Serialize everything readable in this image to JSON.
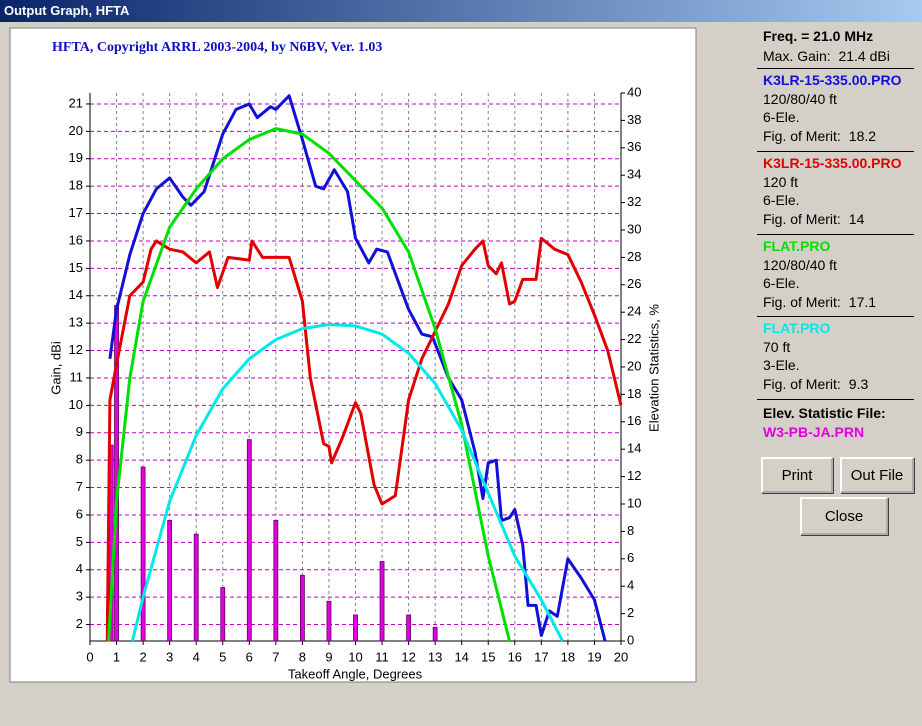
{
  "window": {
    "title": "Output Graph, HFTA"
  },
  "chart_data": {
    "type": "line",
    "title": "HFTA, Copyright ARRL 2003-2004, by N6BV, Ver. 1.03",
    "xlabel": "Takeoff Angle, Degrees",
    "ylabel": "Gain, dBi",
    "y2label": "Elevation Statistics, %",
    "xlim": [
      0,
      20
    ],
    "xticks": [
      0,
      1,
      2,
      3,
      4,
      5,
      6,
      7,
      8,
      9,
      10,
      11,
      12,
      13,
      14,
      15,
      16,
      17,
      18,
      19,
      20
    ],
    "ylim": [
      1.4,
      21.4
    ],
    "yticks": [
      2,
      3,
      4,
      5,
      6,
      7,
      8,
      9,
      10,
      11,
      12,
      13,
      14,
      15,
      16,
      17,
      18,
      19,
      20,
      21
    ],
    "y2lim": [
      0,
      40
    ],
    "y2ticks": [
      0,
      2,
      4,
      6,
      8,
      10,
      12,
      14,
      16,
      18,
      20,
      22,
      24,
      26,
      28,
      30,
      32,
      34,
      36,
      38,
      40
    ],
    "grid": true,
    "freq": "Freq. = 21.0 MHz",
    "max_gain": "Max. Gain:  21.4 dBi",
    "merit_label": "Fig. of Merit:",
    "series": [
      {
        "name": "K3LR-15-335.00.PRO",
        "color": "#1010d8",
        "height": "120/80/40 ft",
        "elements": "6-Ele.",
        "merit": 18.2,
        "x": [
          0.75,
          1,
          1.5,
          2,
          2.5,
          3,
          3.5,
          3.8,
          4.3,
          5,
          5.5,
          6,
          6.3,
          6.8,
          7,
          7.5,
          8,
          8.5,
          8.8,
          9.2,
          9.7,
          10,
          10.5,
          10.8,
          11.2,
          12,
          12.5,
          12.9,
          13.5,
          14,
          14.5,
          14.8,
          15,
          15.3,
          15.5,
          15.8,
          16,
          16.3,
          16.5,
          16.8,
          17,
          17.3,
          17.6,
          18,
          18.5,
          19,
          19.4
        ],
        "values": [
          11.7,
          13.5,
          15.5,
          17,
          17.9,
          18.3,
          17.6,
          17.3,
          17.8,
          19.9,
          20.8,
          21,
          20.5,
          20.9,
          20.8,
          21.3,
          19.7,
          18,
          17.9,
          18.6,
          17.8,
          16.1,
          15.2,
          15.7,
          15.6,
          13.5,
          12.6,
          12.5,
          11,
          10.2,
          8.3,
          6.6,
          7.9,
          8,
          5.8,
          5.9,
          6.2,
          4.9,
          2.7,
          2.7,
          1.6,
          2.5,
          2.3,
          4.4,
          3.7,
          2.9,
          1.4
        ]
      },
      {
        "name": "K3LR-15-335.00.PRO",
        "color": "#e00000",
        "height": "120 ft",
        "elements": "6-Ele.",
        "merit": 14,
        "x": [
          0.65,
          0.75,
          1,
          1.5,
          2,
          2.3,
          2.5,
          3,
          3.5,
          4,
          4.5,
          4.8,
          5.2,
          6,
          6.1,
          6.5,
          7,
          7.5,
          8,
          8.3,
          8.8,
          9,
          9.1,
          9.5,
          10,
          10.2,
          10.7,
          11,
          11.5,
          12,
          12.5,
          13,
          13.5,
          14,
          14.5,
          14.8,
          15,
          15.3,
          15.5,
          15.8,
          16,
          16.3,
          16.8,
          17,
          17.5,
          18,
          18.5,
          19,
          19.5,
          20
        ],
        "values": [
          1.4,
          10.2,
          11.5,
          14,
          14.5,
          15.7,
          16,
          15.7,
          15.6,
          15.2,
          15.6,
          14.3,
          15.4,
          15.3,
          16,
          15.4,
          15.4,
          15.4,
          13.8,
          11,
          8.6,
          8.5,
          7.9,
          8.8,
          10.1,
          9.7,
          7.1,
          6.4,
          6.7,
          10.2,
          11.7,
          12.7,
          13.7,
          15.1,
          15.7,
          16,
          15.1,
          14.8,
          15.2,
          13.7,
          13.8,
          14.6,
          14.6,
          16.1,
          15.7,
          15.5,
          14.5,
          13.3,
          12,
          10
        ]
      },
      {
        "name": "FLAT.PRO",
        "color": "#00e000",
        "height": "120/80/40 ft",
        "elements": "6-Ele.",
        "merit": 17.1,
        "x": [
          0.7,
          1,
          1.5,
          2,
          3,
          4,
          5,
          6,
          7,
          8,
          9,
          10,
          11,
          12,
          13,
          14,
          15,
          15.8
        ],
        "values": [
          1.4,
          6.5,
          11,
          13.8,
          16.5,
          17.9,
          19,
          19.7,
          20.1,
          19.9,
          19.2,
          18.2,
          17.2,
          15.6,
          12.8,
          9.3,
          4.5,
          1.4
        ]
      },
      {
        "name": "FLAT.PRO",
        "color": "#00e8e8",
        "height": "70 ft",
        "elements": "3-Ele.",
        "merit": 9.3,
        "x": [
          1.6,
          2,
          3,
          4,
          5,
          6,
          7,
          8,
          9,
          10,
          11,
          12,
          13,
          14,
          15,
          16,
          17,
          17.8
        ],
        "values": [
          1.4,
          3,
          6.5,
          8.9,
          10.6,
          11.7,
          12.4,
          12.8,
          12.95,
          12.9,
          12.6,
          11.9,
          10.8,
          9.1,
          6.8,
          4.5,
          2.9,
          1.4
        ]
      }
    ],
    "elevation": {
      "label": "Elev. Statistic File:",
      "file": "W3-PB-JA.PRN",
      "color": "#e000e0",
      "axis": "y2",
      "x": [
        0.7,
        0.8,
        1,
        2,
        3,
        4,
        5,
        6,
        7,
        8,
        9,
        10,
        11,
        12,
        13
      ],
      "values": [
        2.4,
        14.3,
        24.5,
        12.7,
        8.8,
        7.8,
        3.9,
        14.7,
        8.8,
        4.8,
        2.9,
        1.9,
        5.8,
        1.9,
        1
      ]
    }
  },
  "buttons": [
    "Print",
    "Out File",
    "Close"
  ]
}
